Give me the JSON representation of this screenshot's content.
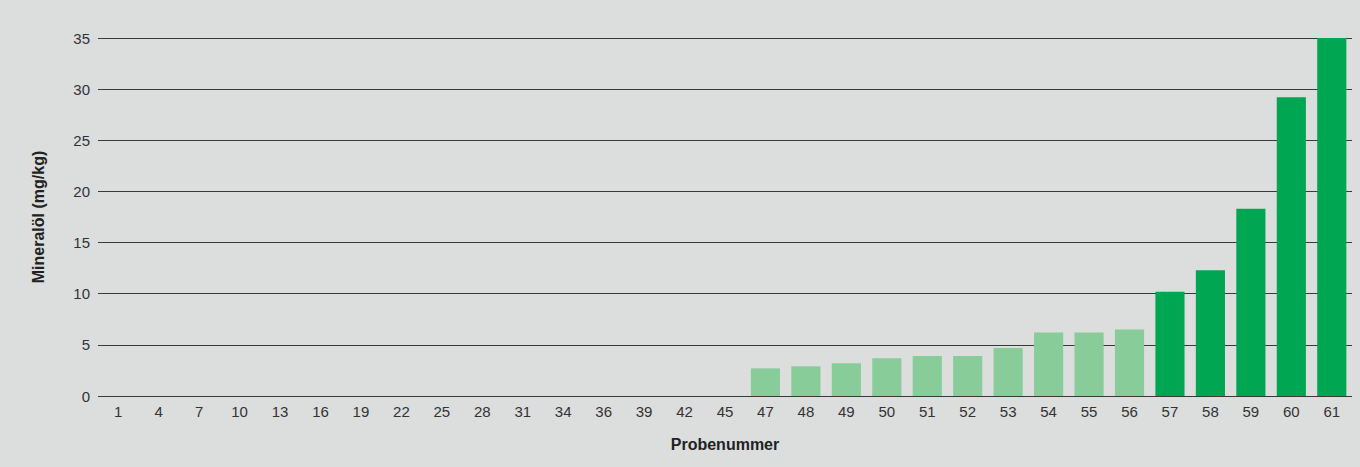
{
  "chart_data": {
    "type": "bar",
    "xlabel": "Probenummer",
    "ylabel": "Mineralöl (mg/kg)",
    "categories": [
      "1",
      "4",
      "7",
      "10",
      "13",
      "16",
      "19",
      "22",
      "25",
      "28",
      "31",
      "34",
      "36",
      "39",
      "42",
      "45",
      "47",
      "48",
      "49",
      "50",
      "51",
      "52",
      "53",
      "54",
      "55",
      "56",
      "57",
      "58",
      "59",
      "60",
      "61"
    ],
    "values": [
      0,
      0,
      0,
      0,
      0,
      0,
      0,
      0,
      0,
      0,
      0,
      0,
      0,
      0,
      0,
      0,
      2.7,
      2.9,
      3.2,
      3.7,
      3.9,
      3.9,
      4.7,
      6.2,
      6.2,
      6.5,
      10.2,
      12.3,
      18.3,
      29.2,
      35
    ],
    "colors": [
      "#88cc99",
      "#88cc99",
      "#88cc99",
      "#88cc99",
      "#88cc99",
      "#88cc99",
      "#88cc99",
      "#88cc99",
      "#88cc99",
      "#88cc99",
      "#88cc99",
      "#88cc99",
      "#88cc99",
      "#88cc99",
      "#88cc99",
      "#88cc99",
      "#88cc99",
      "#88cc99",
      "#88cc99",
      "#88cc99",
      "#88cc99",
      "#88cc99",
      "#88cc99",
      "#88cc99",
      "#88cc99",
      "#88cc99",
      "#00a651",
      "#00a651",
      "#00a651",
      "#00a651",
      "#00a651"
    ],
    "ylim": [
      0,
      35
    ],
    "yticks": [
      0,
      5,
      10,
      15,
      20,
      25,
      30,
      35
    ],
    "grid": true
  }
}
